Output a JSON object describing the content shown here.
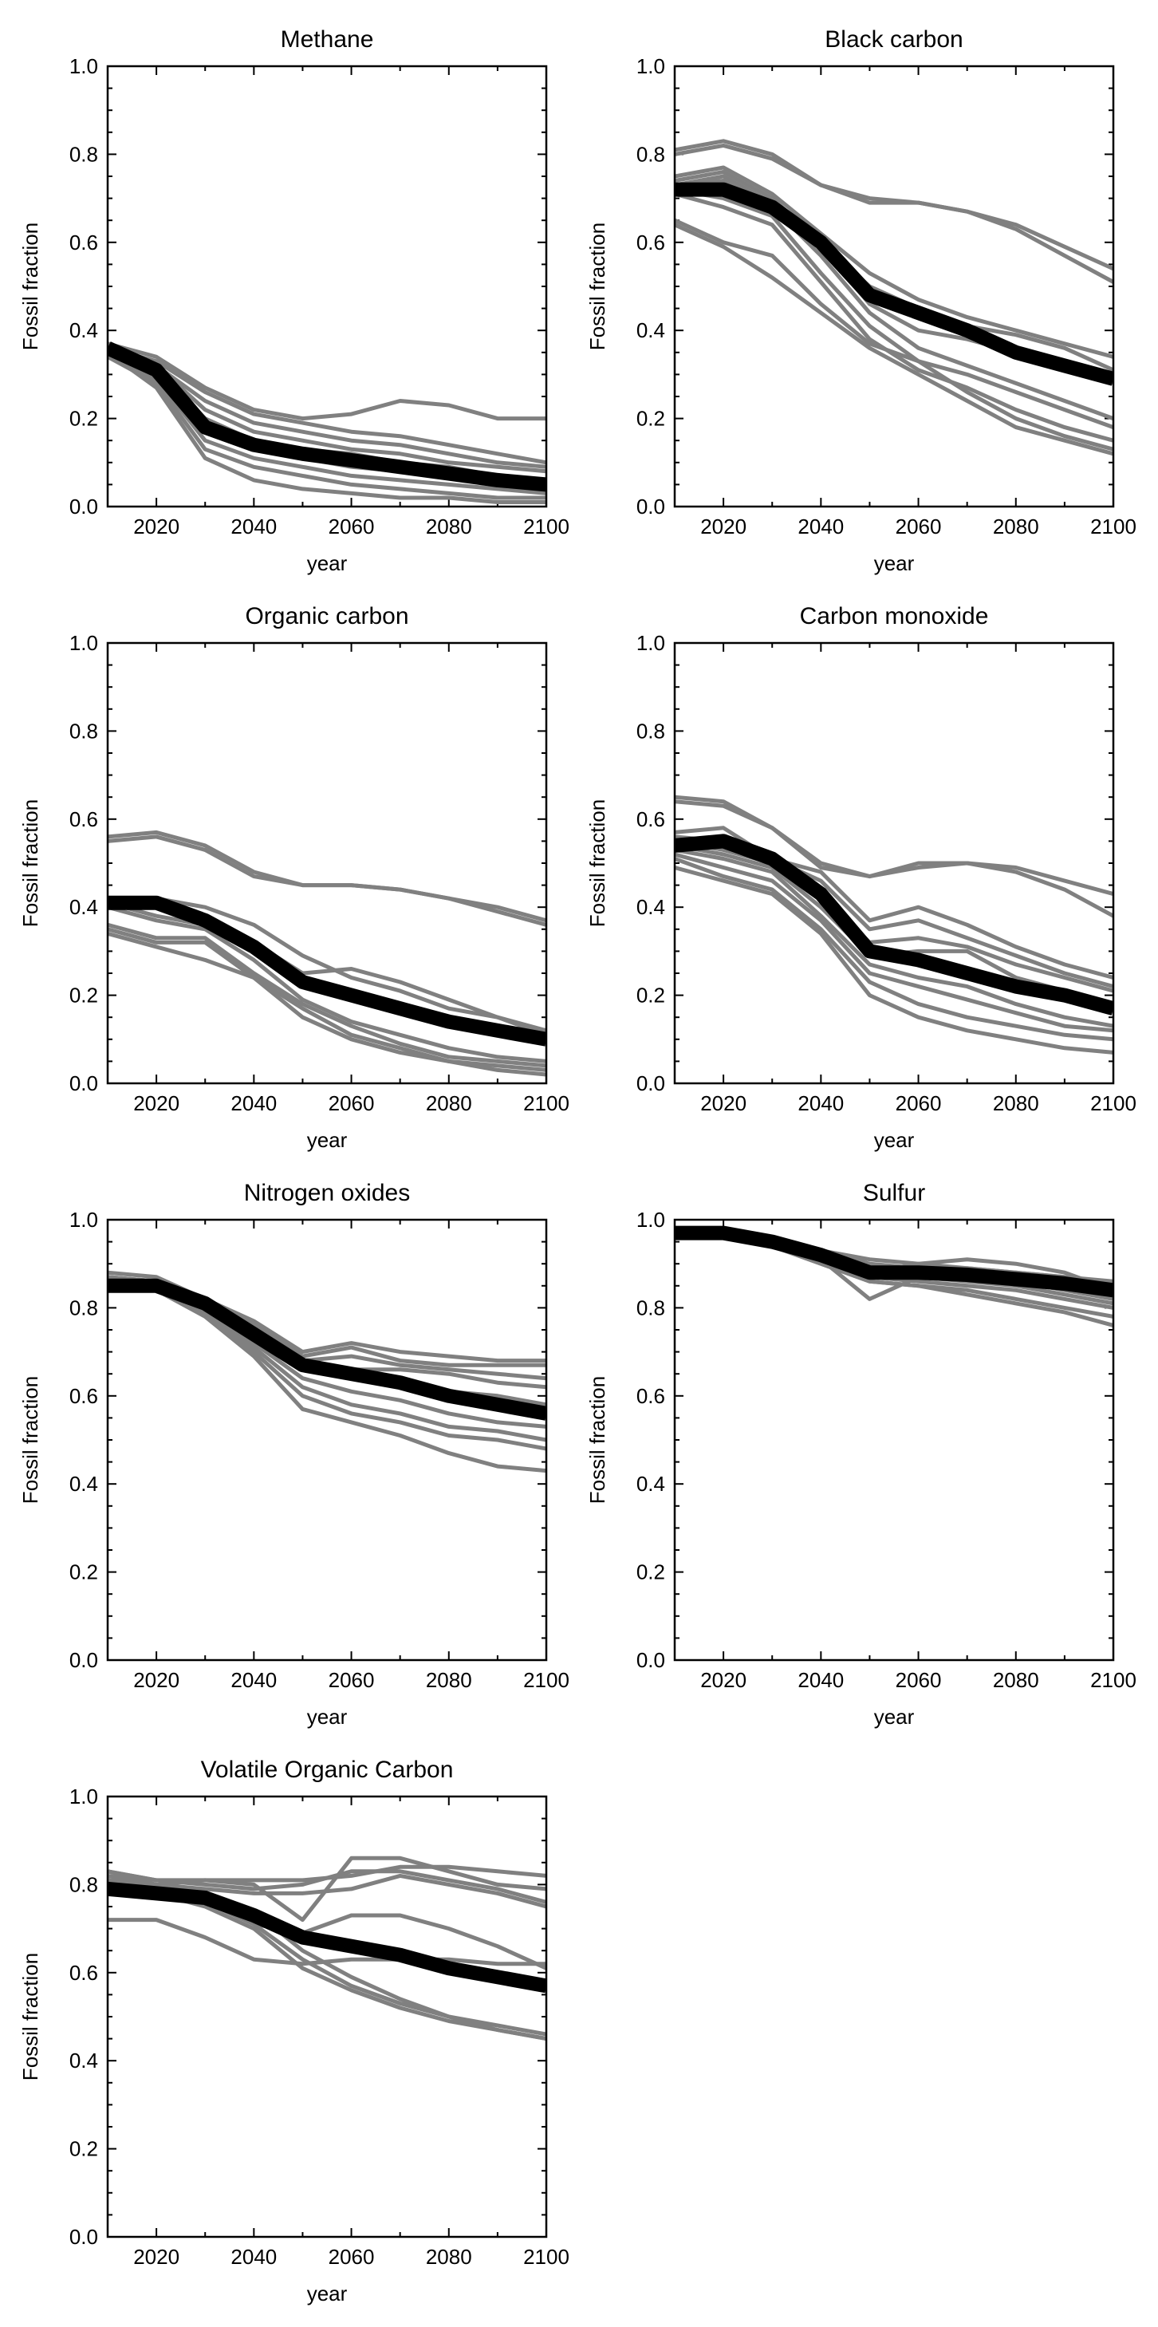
{
  "chart_data": [
    {
      "type": "line",
      "title": "Methane",
      "xlabel": "year",
      "ylabel": "Fossil fraction",
      "xlim": [
        2010,
        2100
      ],
      "ylim": [
        0,
        1
      ],
      "xticks": [
        2020,
        2040,
        2060,
        2080,
        2100
      ],
      "yticks": [
        0.0,
        0.2,
        0.4,
        0.6,
        0.8,
        1.0
      ],
      "x": [
        2010,
        2020,
        2030,
        2040,
        2050,
        2060,
        2070,
        2080,
        2090,
        2100
      ],
      "scenario_color": "#808080",
      "mean_color": "#000000",
      "scenarios": [
        [
          0.37,
          0.34,
          0.27,
          0.22,
          0.2,
          0.21,
          0.24,
          0.23,
          0.2,
          0.2
        ],
        [
          0.36,
          0.33,
          0.26,
          0.21,
          0.19,
          0.17,
          0.16,
          0.14,
          0.12,
          0.1
        ],
        [
          0.36,
          0.32,
          0.24,
          0.19,
          0.17,
          0.15,
          0.14,
          0.12,
          0.1,
          0.09
        ],
        [
          0.35,
          0.32,
          0.22,
          0.17,
          0.15,
          0.13,
          0.12,
          0.1,
          0.09,
          0.08
        ],
        [
          0.36,
          0.31,
          0.2,
          0.15,
          0.13,
          0.12,
          0.1,
          0.09,
          0.07,
          0.06
        ],
        [
          0.35,
          0.3,
          0.18,
          0.13,
          0.11,
          0.09,
          0.08,
          0.07,
          0.06,
          0.05
        ],
        [
          0.34,
          0.29,
          0.15,
          0.11,
          0.09,
          0.07,
          0.06,
          0.05,
          0.04,
          0.03
        ],
        [
          0.34,
          0.28,
          0.13,
          0.09,
          0.07,
          0.05,
          0.04,
          0.03,
          0.02,
          0.02
        ],
        [
          0.35,
          0.27,
          0.11,
          0.06,
          0.04,
          0.03,
          0.02,
          0.02,
          0.01,
          0.01
        ]
      ],
      "mean": [
        0.36,
        0.31,
        0.18,
        0.14,
        0.12,
        0.105,
        0.09,
        0.075,
        0.06,
        0.05
      ]
    },
    {
      "type": "line",
      "title": "Black carbon",
      "xlabel": "year",
      "ylabel": "Fossil fraction",
      "xlim": [
        2010,
        2100
      ],
      "ylim": [
        0,
        1
      ],
      "xticks": [
        2020,
        2040,
        2060,
        2080,
        2100
      ],
      "yticks": [
        0.0,
        0.2,
        0.4,
        0.6,
        0.8,
        1.0
      ],
      "x": [
        2010,
        2020,
        2030,
        2040,
        2050,
        2060,
        2070,
        2080,
        2090,
        2100
      ],
      "scenario_color": "#808080",
      "mean_color": "#000000",
      "scenarios": [
        [
          0.81,
          0.83,
          0.8,
          0.73,
          0.7,
          0.69,
          0.67,
          0.64,
          0.59,
          0.54
        ],
        [
          0.8,
          0.82,
          0.79,
          0.73,
          0.69,
          0.69,
          0.67,
          0.63,
          0.57,
          0.51
        ],
        [
          0.75,
          0.77,
          0.71,
          0.62,
          0.53,
          0.47,
          0.43,
          0.4,
          0.37,
          0.34
        ],
        [
          0.74,
          0.76,
          0.7,
          0.6,
          0.5,
          0.45,
          0.41,
          0.39,
          0.36,
          0.31
        ],
        [
          0.73,
          0.75,
          0.69,
          0.59,
          0.46,
          0.4,
          0.38,
          0.35,
          0.32,
          0.28
        ],
        [
          0.73,
          0.74,
          0.68,
          0.57,
          0.44,
          0.36,
          0.32,
          0.28,
          0.24,
          0.2
        ],
        [
          0.72,
          0.7,
          0.66,
          0.53,
          0.41,
          0.33,
          0.3,
          0.26,
          0.22,
          0.18
        ],
        [
          0.71,
          0.68,
          0.64,
          0.51,
          0.38,
          0.31,
          0.27,
          0.22,
          0.18,
          0.15
        ],
        [
          0.65,
          0.6,
          0.57,
          0.46,
          0.37,
          0.33,
          0.26,
          0.2,
          0.16,
          0.13
        ],
        [
          0.64,
          0.59,
          0.52,
          0.44,
          0.36,
          0.3,
          0.24,
          0.18,
          0.15,
          0.12
        ]
      ],
      "mean": [
        0.72,
        0.72,
        0.68,
        0.6,
        0.48,
        0.44,
        0.4,
        0.35,
        0.32,
        0.29
      ]
    },
    {
      "type": "line",
      "title": "Organic carbon",
      "xlabel": "year",
      "ylabel": "Fossil fraction",
      "xlim": [
        2010,
        2100
      ],
      "ylim": [
        0,
        1
      ],
      "xticks": [
        2020,
        2040,
        2060,
        2080,
        2100
      ],
      "yticks": [
        0.0,
        0.2,
        0.4,
        0.6,
        0.8,
        1.0
      ],
      "x": [
        2010,
        2020,
        2030,
        2040,
        2050,
        2060,
        2070,
        2080,
        2090,
        2100
      ],
      "scenario_color": "#808080",
      "mean_color": "#000000",
      "scenarios": [
        [
          0.56,
          0.57,
          0.54,
          0.48,
          0.45,
          0.45,
          0.44,
          0.42,
          0.4,
          0.37
        ],
        [
          0.55,
          0.56,
          0.53,
          0.47,
          0.45,
          0.45,
          0.44,
          0.42,
          0.39,
          0.36
        ],
        [
          0.42,
          0.42,
          0.4,
          0.36,
          0.29,
          0.24,
          0.21,
          0.17,
          0.15,
          0.12
        ],
        [
          0.41,
          0.4,
          0.38,
          0.32,
          0.25,
          0.26,
          0.23,
          0.19,
          0.15,
          0.11
        ],
        [
          0.41,
          0.38,
          0.36,
          0.3,
          0.23,
          0.2,
          0.17,
          0.14,
          0.12,
          0.1
        ],
        [
          0.4,
          0.37,
          0.35,
          0.28,
          0.19,
          0.14,
          0.11,
          0.08,
          0.06,
          0.05
        ],
        [
          0.36,
          0.33,
          0.33,
          0.25,
          0.18,
          0.13,
          0.09,
          0.06,
          0.05,
          0.04
        ],
        [
          0.35,
          0.32,
          0.32,
          0.24,
          0.17,
          0.11,
          0.08,
          0.05,
          0.04,
          0.03
        ],
        [
          0.34,
          0.31,
          0.28,
          0.24,
          0.15,
          0.1,
          0.07,
          0.05,
          0.03,
          0.02
        ]
      ],
      "mean": [
        0.41,
        0.41,
        0.37,
        0.31,
        0.23,
        0.2,
        0.17,
        0.14,
        0.12,
        0.1
      ]
    },
    {
      "type": "line",
      "title": "Carbon monoxide",
      "xlabel": "year",
      "ylabel": "Fossil fraction",
      "xlim": [
        2010,
        2100
      ],
      "ylim": [
        0,
        1
      ],
      "xticks": [
        2020,
        2040,
        2060,
        2080,
        2100
      ],
      "yticks": [
        0.0,
        0.2,
        0.4,
        0.6,
        0.8,
        1.0
      ],
      "x": [
        2010,
        2020,
        2030,
        2040,
        2050,
        2060,
        2070,
        2080,
        2090,
        2100
      ],
      "scenario_color": "#808080",
      "mean_color": "#000000",
      "scenarios": [
        [
          0.65,
          0.64,
          0.58,
          0.5,
          0.47,
          0.5,
          0.5,
          0.49,
          0.46,
          0.43
        ],
        [
          0.64,
          0.63,
          0.58,
          0.49,
          0.47,
          0.49,
          0.5,
          0.48,
          0.44,
          0.38
        ],
        [
          0.57,
          0.58,
          0.51,
          0.48,
          0.37,
          0.4,
          0.36,
          0.31,
          0.27,
          0.24
        ],
        [
          0.56,
          0.55,
          0.51,
          0.46,
          0.35,
          0.37,
          0.33,
          0.29,
          0.25,
          0.22
        ],
        [
          0.55,
          0.53,
          0.5,
          0.43,
          0.32,
          0.33,
          0.31,
          0.27,
          0.24,
          0.21
        ],
        [
          0.54,
          0.52,
          0.49,
          0.4,
          0.29,
          0.3,
          0.3,
          0.24,
          0.21,
          0.18
        ],
        [
          0.53,
          0.51,
          0.48,
          0.38,
          0.27,
          0.24,
          0.22,
          0.18,
          0.15,
          0.13
        ],
        [
          0.52,
          0.49,
          0.46,
          0.37,
          0.25,
          0.22,
          0.19,
          0.16,
          0.13,
          0.12
        ],
        [
          0.51,
          0.47,
          0.44,
          0.35,
          0.23,
          0.18,
          0.15,
          0.13,
          0.11,
          0.1
        ],
        [
          0.49,
          0.46,
          0.43,
          0.34,
          0.2,
          0.15,
          0.12,
          0.1,
          0.08,
          0.07
        ]
      ],
      "mean": [
        0.54,
        0.55,
        0.51,
        0.43,
        0.3,
        0.28,
        0.25,
        0.22,
        0.2,
        0.17
      ]
    },
    {
      "type": "line",
      "title": "Nitrogen oxides",
      "xlabel": "year",
      "ylabel": "Fossil fraction",
      "xlim": [
        2010,
        2100
      ],
      "ylim": [
        0,
        1
      ],
      "xticks": [
        2020,
        2040,
        2060,
        2080,
        2100
      ],
      "yticks": [
        0.0,
        0.2,
        0.4,
        0.6,
        0.8,
        1.0
      ],
      "x": [
        2010,
        2020,
        2030,
        2040,
        2050,
        2060,
        2070,
        2080,
        2090,
        2100
      ],
      "scenario_color": "#808080",
      "mean_color": "#000000",
      "scenarios": [
        [
          0.88,
          0.87,
          0.82,
          0.77,
          0.7,
          0.72,
          0.7,
          0.69,
          0.68,
          0.68
        ],
        [
          0.87,
          0.86,
          0.82,
          0.76,
          0.69,
          0.71,
          0.68,
          0.67,
          0.67,
          0.67
        ],
        [
          0.87,
          0.86,
          0.81,
          0.75,
          0.68,
          0.69,
          0.67,
          0.66,
          0.65,
          0.64
        ],
        [
          0.86,
          0.86,
          0.81,
          0.74,
          0.67,
          0.66,
          0.66,
          0.65,
          0.63,
          0.62
        ],
        [
          0.86,
          0.85,
          0.8,
          0.73,
          0.66,
          0.64,
          0.63,
          0.61,
          0.6,
          0.58
        ],
        [
          0.85,
          0.85,
          0.8,
          0.72,
          0.64,
          0.61,
          0.59,
          0.56,
          0.54,
          0.53
        ],
        [
          0.85,
          0.85,
          0.79,
          0.71,
          0.62,
          0.58,
          0.56,
          0.53,
          0.52,
          0.5
        ],
        [
          0.84,
          0.84,
          0.79,
          0.7,
          0.6,
          0.56,
          0.54,
          0.51,
          0.5,
          0.48
        ],
        [
          0.84,
          0.84,
          0.78,
          0.69,
          0.57,
          0.54,
          0.51,
          0.47,
          0.44,
          0.43
        ]
      ],
      "mean": [
        0.85,
        0.85,
        0.81,
        0.74,
        0.67,
        0.65,
        0.63,
        0.6,
        0.58,
        0.56
      ]
    },
    {
      "type": "line",
      "title": "Sulfur",
      "xlabel": "year",
      "ylabel": "Fossil fraction",
      "xlim": [
        2010,
        2100
      ],
      "ylim": [
        0,
        1
      ],
      "xticks": [
        2020,
        2040,
        2060,
        2080,
        2100
      ],
      "yticks": [
        0.0,
        0.2,
        0.4,
        0.6,
        0.8,
        1.0
      ],
      "x": [
        2010,
        2020,
        2030,
        2040,
        2050,
        2060,
        2070,
        2080,
        2090,
        2100
      ],
      "scenario_color": "#808080",
      "mean_color": "#000000",
      "scenarios": [
        [
          0.98,
          0.97,
          0.95,
          0.93,
          0.91,
          0.9,
          0.89,
          0.88,
          0.87,
          0.86
        ],
        [
          0.98,
          0.97,
          0.95,
          0.93,
          0.9,
          0.89,
          0.89,
          0.88,
          0.87,
          0.85
        ],
        [
          0.97,
          0.97,
          0.95,
          0.92,
          0.88,
          0.9,
          0.91,
          0.9,
          0.88,
          0.84
        ],
        [
          0.98,
          0.97,
          0.95,
          0.92,
          0.89,
          0.88,
          0.87,
          0.86,
          0.84,
          0.82
        ],
        [
          0.97,
          0.96,
          0.94,
          0.91,
          0.87,
          0.86,
          0.85,
          0.84,
          0.82,
          0.8
        ],
        [
          0.97,
          0.96,
          0.94,
          0.91,
          0.82,
          0.87,
          0.86,
          0.85,
          0.83,
          0.81
        ],
        [
          0.97,
          0.96,
          0.94,
          0.9,
          0.86,
          0.85,
          0.84,
          0.82,
          0.8,
          0.78
        ],
        [
          0.96,
          0.96,
          0.94,
          0.9,
          0.86,
          0.85,
          0.83,
          0.81,
          0.79,
          0.76
        ]
      ],
      "mean": [
        0.97,
        0.97,
        0.95,
        0.92,
        0.88,
        0.88,
        0.875,
        0.865,
        0.855,
        0.84
      ]
    },
    {
      "type": "line",
      "title": "Volatile Organic Carbon",
      "xlabel": "year",
      "ylabel": "Fossil fraction",
      "xlim": [
        2010,
        2100
      ],
      "ylim": [
        0,
        1
      ],
      "xticks": [
        2020,
        2040,
        2060,
        2080,
        2100
      ],
      "yticks": [
        0.0,
        0.2,
        0.4,
        0.6,
        0.8,
        1.0
      ],
      "x": [
        2010,
        2020,
        2030,
        2040,
        2050,
        2060,
        2070,
        2080,
        2090,
        2100
      ],
      "scenario_color": "#808080",
      "mean_color": "#000000",
      "scenarios": [
        [
          0.83,
          0.81,
          0.81,
          0.81,
          0.81,
          0.82,
          0.84,
          0.84,
          0.83,
          0.82
        ],
        [
          0.82,
          0.8,
          0.81,
          0.8,
          0.72,
          0.86,
          0.86,
          0.83,
          0.8,
          0.79
        ],
        [
          0.83,
          0.81,
          0.8,
          0.79,
          0.8,
          0.83,
          0.83,
          0.81,
          0.79,
          0.76
        ],
        [
          0.81,
          0.8,
          0.79,
          0.78,
          0.78,
          0.79,
          0.82,
          0.8,
          0.78,
          0.75
        ],
        [
          0.72,
          0.72,
          0.68,
          0.63,
          0.62,
          0.63,
          0.63,
          0.63,
          0.62,
          0.62
        ],
        [
          0.82,
          0.8,
          0.78,
          0.71,
          0.69,
          0.73,
          0.73,
          0.7,
          0.66,
          0.61
        ],
        [
          0.83,
          0.8,
          0.77,
          0.74,
          0.65,
          0.59,
          0.54,
          0.5,
          0.48,
          0.46
        ],
        [
          0.81,
          0.79,
          0.76,
          0.71,
          0.63,
          0.57,
          0.53,
          0.5,
          0.47,
          0.45
        ],
        [
          0.8,
          0.78,
          0.75,
          0.7,
          0.61,
          0.56,
          0.52,
          0.49,
          0.47,
          0.45
        ]
      ],
      "mean": [
        0.79,
        0.78,
        0.77,
        0.73,
        0.68,
        0.66,
        0.64,
        0.61,
        0.59,
        0.57
      ]
    }
  ]
}
